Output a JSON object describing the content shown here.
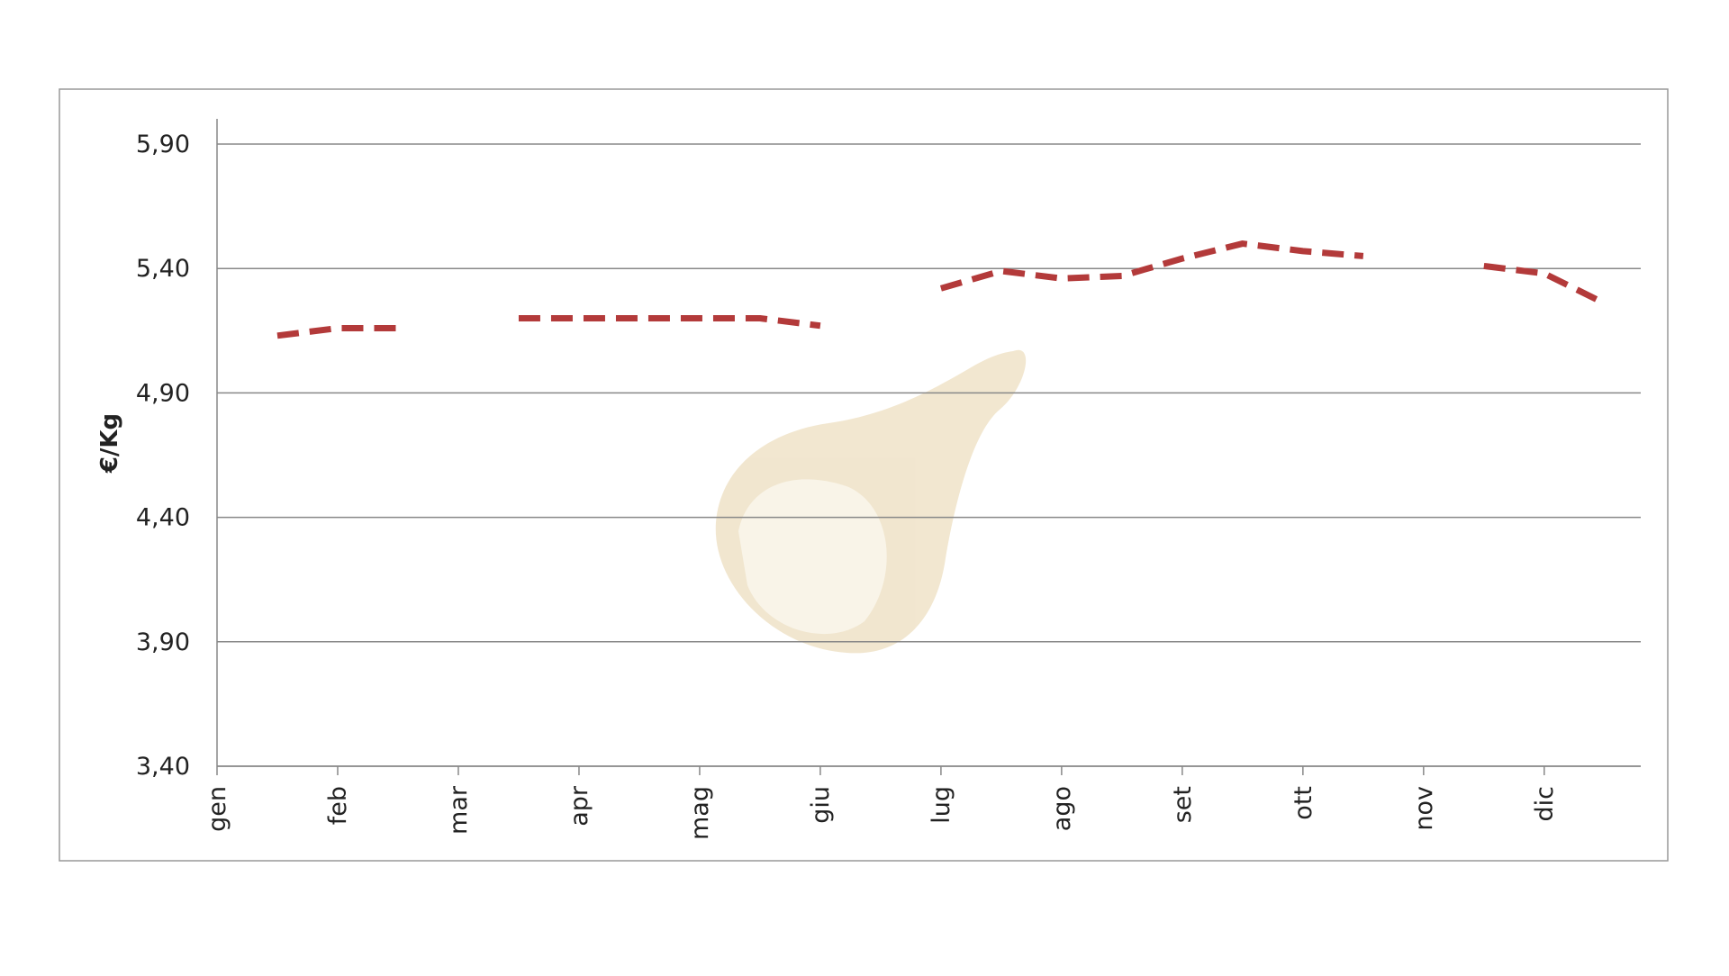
{
  "chart_data": {
    "type": "line",
    "y_label": "€/Kg",
    "categories": [
      "gen",
      null,
      "feb",
      null,
      "mar",
      null,
      "apr",
      null,
      "mag",
      null,
      "giu",
      null,
      "lug",
      null,
      "ago",
      null,
      "set",
      null,
      "ott",
      null,
      "nov",
      null,
      "dic",
      null
    ],
    "series": [
      {
        "color": "#b33a3a",
        "values": [
          null,
          5.13,
          5.16,
          5.16,
          null,
          5.2,
          5.2,
          5.2,
          5.2,
          5.2,
          5.17,
          null,
          5.32,
          5.39,
          5.36,
          5.37,
          5.44,
          5.5,
          5.47,
          5.45,
          null,
          5.41,
          5.38,
          5.26
        ]
      }
    ],
    "ylim": [
      3.4,
      5.9
    ],
    "yticks": [
      {
        "value": 3.4,
        "label": "3,40"
      },
      {
        "value": 3.9,
        "label": "3,90"
      },
      {
        "value": 4.4,
        "label": "4,40"
      },
      {
        "value": 4.9,
        "label": "4,90"
      },
      {
        "value": 5.4,
        "label": "5,40"
      },
      {
        "value": 5.9,
        "label": "5,90"
      }
    ],
    "grid": true
  }
}
